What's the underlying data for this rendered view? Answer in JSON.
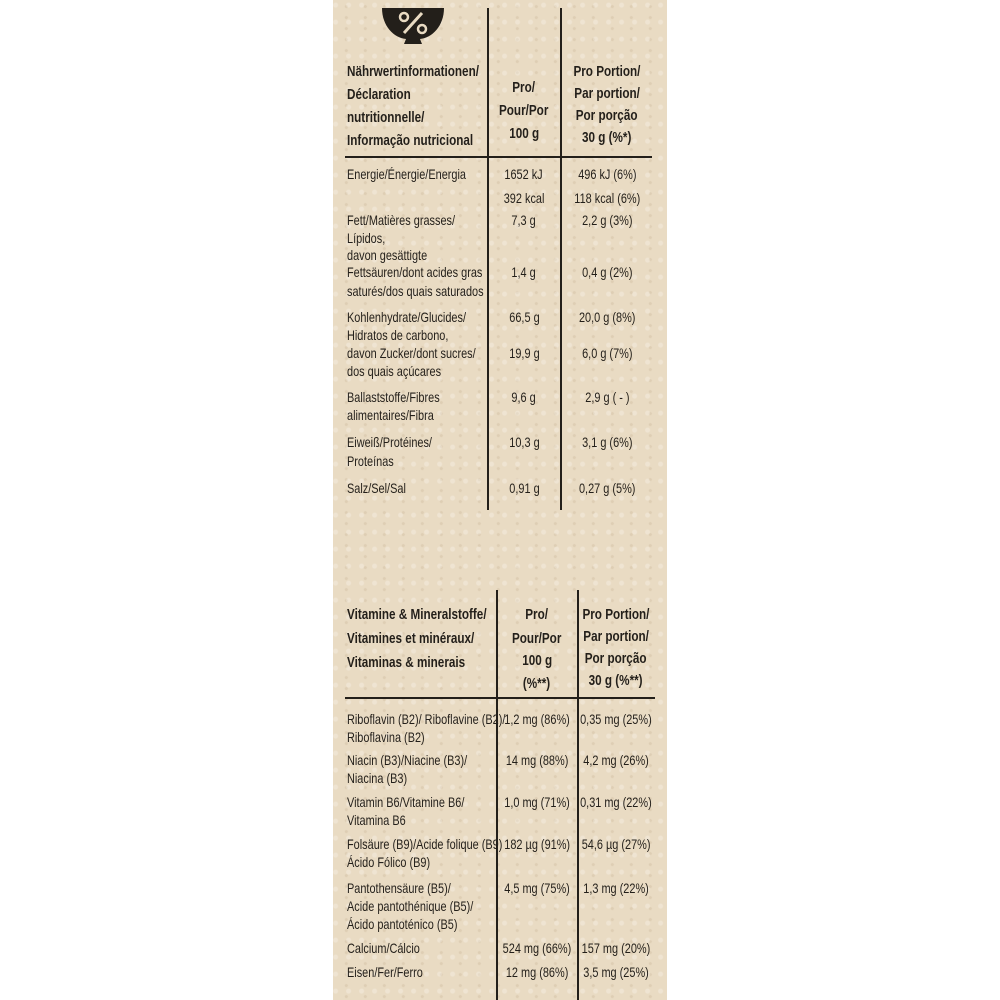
{
  "icon": "percent-bowl-icon",
  "nutrition": {
    "header": {
      "label": [
        "Nährwertinformationen/",
        "Déclaration",
        "nutritionnelle/",
        "Informação nutricional"
      ],
      "per100": [
        "Pro/",
        "Pour/Por",
        "100 g"
      ],
      "portion": [
        "Pro Portion/",
        "Par portion/",
        "Por porção",
        "30 g (%*)"
      ]
    },
    "rows": [
      {
        "label": "Energie/Énergie/Energia",
        "per100": "1652 kJ",
        "portion": "496 kJ (6%)"
      },
      {
        "label": "",
        "per100": "392 kcal",
        "portion": "118 kcal (6%)"
      },
      {
        "label": "Fett/Matières grasses/",
        "per100": "7,3 g",
        "portion": "2,2 g (3%)"
      },
      {
        "label": "Lípidos,",
        "per100": "",
        "portion": ""
      },
      {
        "label": "davon gesättigte",
        "per100": "",
        "portion": ""
      },
      {
        "label": "Fettsäuren/dont acides gras",
        "per100": "1,4 g",
        "portion": "0,4 g (2%)"
      },
      {
        "label": "saturés/dos quais saturados",
        "per100": "",
        "portion": ""
      },
      {
        "label": "Kohlenhydrate/Glucides/",
        "per100": "66,5 g",
        "portion": "20,0 g (8%)"
      },
      {
        "label": "Hidratos de carbono,",
        "per100": "",
        "portion": ""
      },
      {
        "label": "davon Zucker/dont sucres/",
        "per100": "19,9 g",
        "portion": "6,0 g (7%)"
      },
      {
        "label": "dos quais açúcares",
        "per100": "",
        "portion": ""
      },
      {
        "label": "Ballaststoffe/Fibres",
        "per100": "9,6 g",
        "portion": "2,9 g ( - )"
      },
      {
        "label": "alimentaires/Fibra",
        "per100": "",
        "portion": ""
      },
      {
        "label": "Eiweiß/Protéines/",
        "per100": "10,3 g",
        "portion": "3,1 g (6%)"
      },
      {
        "label": "Proteínas",
        "per100": "",
        "portion": ""
      },
      {
        "label": "Salz/Sel/Sal",
        "per100": "0,91 g",
        "portion": "0,27 g (5%)"
      }
    ]
  },
  "vitamins": {
    "header": {
      "label": [
        "Vitamine & Mineralstoffe/",
        "Vitamines et minéraux/",
        "Vitaminas & minerais"
      ],
      "per100": [
        "Pro/",
        "Pour/Por",
        "100 g",
        "(%**)"
      ],
      "portion": [
        "Pro Portion/",
        "Par portion/",
        "Por porção",
        "30 g (%**)"
      ]
    },
    "rows": [
      {
        "label": "Riboflavin (B2)/ Riboflavine (B2)/",
        "per100": "1,2 mg (86%)",
        "portion": "0,35 mg (25%)"
      },
      {
        "label": "Riboflavina (B2)",
        "per100": "",
        "portion": ""
      },
      {
        "label": "Niacin (B3)/Niacine (B3)/",
        "per100": "14 mg (88%)",
        "portion": "4,2 mg (26%)"
      },
      {
        "label": "Niacina (B3)",
        "per100": "",
        "portion": ""
      },
      {
        "label": "Vitamin B6/Vitamine B6/",
        "per100": "1,0 mg (71%)",
        "portion": "0,31 mg (22%)"
      },
      {
        "label": "Vitamina B6",
        "per100": "",
        "portion": ""
      },
      {
        "label": "Folsäure (B9)/Acide folique (B9)",
        "per100": "182 µg (91%)",
        "portion": "54,6 µg (27%)"
      },
      {
        "label": "Ácido Fólico (B9)",
        "per100": "",
        "portion": ""
      },
      {
        "label": "Pantothensäure (B5)/",
        "per100": "4,5 mg (75%)",
        "portion": "1,3 mg (22%)"
      },
      {
        "label": "Acide pantothénique (B5)/",
        "per100": "",
        "portion": ""
      },
      {
        "label": "Ácido pantoténico (B5)",
        "per100": "",
        "portion": ""
      },
      {
        "label": "Calcium/Cálcio",
        "per100": "524 mg (66%)",
        "portion": "157 mg (20%)"
      },
      {
        "label": "Eisen/Fer/Ferro",
        "per100": "12 mg (86%)",
        "portion": "3,5 mg (25%)"
      }
    ]
  }
}
